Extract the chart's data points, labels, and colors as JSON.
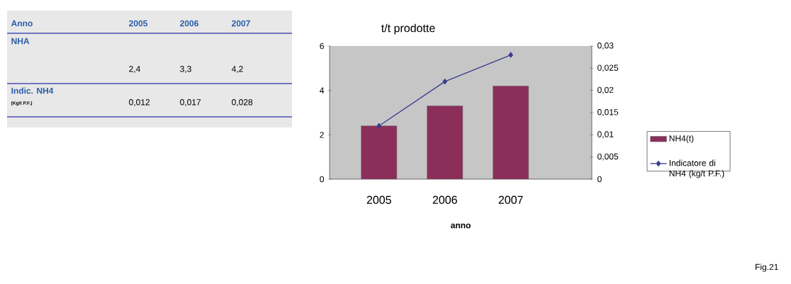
{
  "chart_data": {
    "type": "bar",
    "title": "t/t prodotte",
    "xlabel": "anno",
    "categories": [
      "2005",
      "2006",
      "2007"
    ],
    "series": [
      {
        "name": "NH4(t)",
        "color": "#8b2f5a",
        "values": [
          2.4,
          3.3,
          4.2
        ]
      },
      {
        "name": "Indicatore di NH4 (kg/t P.F.)",
        "type": "line",
        "axis": "y2",
        "color": "#3b3b8f",
        "marker": "diamond",
        "values": [
          0.012,
          0.022,
          0.028
        ]
      }
    ],
    "ylim": [
      0,
      6
    ],
    "yticks": [
      0,
      2,
      4,
      6
    ],
    "y2lim": [
      0,
      0.03
    ],
    "y2ticks": [
      {
        "value": 0,
        "label": "0"
      },
      {
        "value": 0.005,
        "label": "0,005"
      },
      {
        "value": 0.01,
        "label": "0,01"
      },
      {
        "value": 0.015,
        "label": "0,015"
      },
      {
        "value": 0.02,
        "label": "0,02"
      },
      {
        "value": 0.025,
        "label": "0,025"
      },
      {
        "value": 0.03,
        "label": "0,03"
      }
    ],
    "legend": "right",
    "annotations": [
      "Anno",
      "NHA",
      "2,4",
      "3,3",
      "4,2",
      "Indic. NH4",
      "(Kg/t P.F.)",
      "0,012",
      "0,017",
      "0,028",
      "Fig.21"
    ]
  }
}
